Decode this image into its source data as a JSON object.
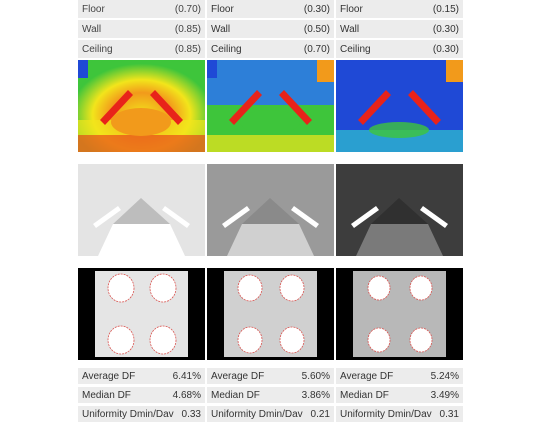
{
  "columns": [
    {
      "reflectance": [
        {
          "label": "Floor",
          "value": "(0.70)"
        },
        {
          "label": "Wall",
          "value": "(0.85)"
        },
        {
          "label": "Ceiling",
          "value": "(0.85)"
        }
      ],
      "stats": [
        {
          "label": "Average DF",
          "value": "6.41%"
        },
        {
          "label": "Median DF",
          "value": "4.68%"
        },
        {
          "label": "Uniformity Dmin/Dav",
          "value": "0.33"
        }
      ],
      "heat_tone": "warm",
      "render_tone": "light"
    },
    {
      "reflectance": [
        {
          "label": "Floor",
          "value": "(0.30)"
        },
        {
          "label": "Wall",
          "value": "(0.50)"
        },
        {
          "label": "Ceiling",
          "value": "(0.70)"
        }
      ],
      "stats": [
        {
          "label": "Average DF",
          "value": "5.60%"
        },
        {
          "label": "Median DF",
          "value": "3.86%"
        },
        {
          "label": "Uniformity Dmin/Dav",
          "value": "0.21"
        }
      ],
      "heat_tone": "mid",
      "render_tone": "mid"
    },
    {
      "reflectance": [
        {
          "label": "Floor",
          "value": "(0.15)"
        },
        {
          "label": "Wall",
          "value": "(0.30)"
        },
        {
          "label": "Ceiling",
          "value": "(0.30)"
        }
      ],
      "stats": [
        {
          "label": "Average DF",
          "value": "5.24%"
        },
        {
          "label": "Median DF",
          "value": "3.49%"
        },
        {
          "label": "Uniformity Dmin/Dav",
          "value": "0.31"
        }
      ],
      "heat_tone": "cool",
      "render_tone": "dark"
    }
  ],
  "colors": {
    "row_bg": "#ececec",
    "heat_red": "#e8231a",
    "heat_yellow": "#f2e51b",
    "heat_green": "#3ec53b",
    "heat_blue": "#1f49d6"
  }
}
